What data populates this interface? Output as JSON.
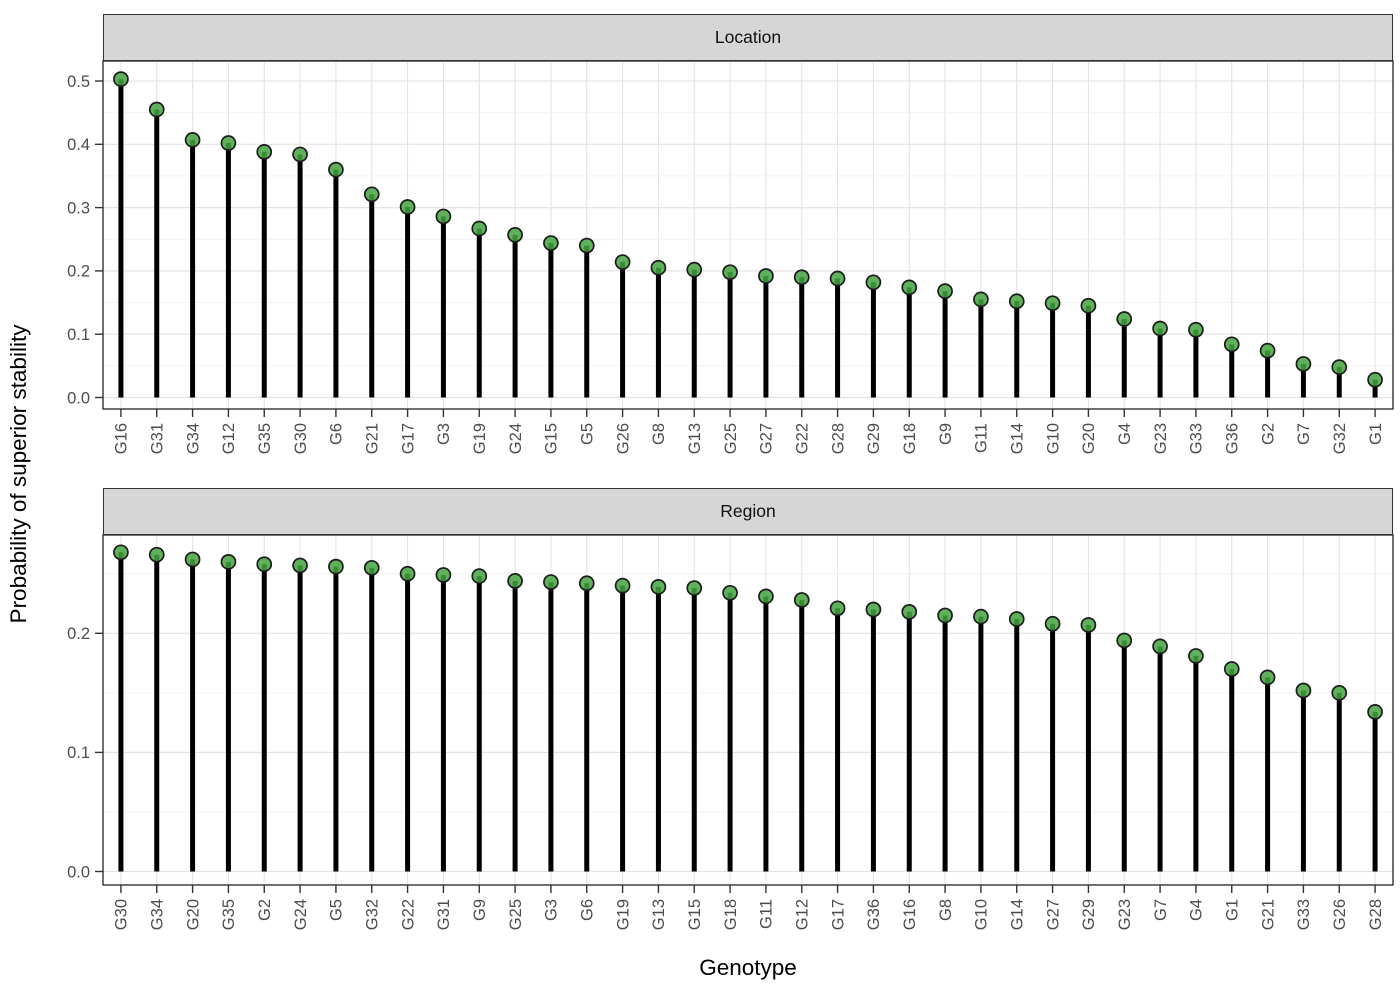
{
  "y_axis_title": "Probability of superior stability",
  "x_axis_title": "Genotype",
  "colors": {
    "point_fill": "#44a340",
    "point_stroke": "#1c1c1c",
    "stem": "#000000",
    "strip_bg": "#d6d6d6",
    "panel_border": "#333333",
    "grid_major": "#e3e3e3",
    "grid_minor": "#f1f1f1",
    "axis_text": "#4d4d4d",
    "tick_mark": "#333333",
    "title_text": "#000000"
  },
  "chart_data": [
    {
      "type": "bar",
      "variant": "lollipop (stem + point)",
      "facet": "Location",
      "categories": [
        "G16",
        "G31",
        "G34",
        "G12",
        "G35",
        "G30",
        "G6",
        "G21",
        "G17",
        "G3",
        "G19",
        "G24",
        "G15",
        "G5",
        "G26",
        "G8",
        "G13",
        "G25",
        "G27",
        "G22",
        "G28",
        "G29",
        "G18",
        "G9",
        "G11",
        "G14",
        "G10",
        "G20",
        "G4",
        "G23",
        "G33",
        "G36",
        "G2",
        "G7",
        "G32",
        "G1"
      ],
      "values": [
        0.503,
        0.455,
        0.407,
        0.402,
        0.388,
        0.384,
        0.36,
        0.321,
        0.301,
        0.286,
        0.267,
        0.257,
        0.244,
        0.24,
        0.214,
        0.205,
        0.202,
        0.198,
        0.192,
        0.19,
        0.188,
        0.182,
        0.174,
        0.168,
        0.155,
        0.152,
        0.149,
        0.145,
        0.124,
        0.109,
        0.107,
        0.084,
        0.074,
        0.053,
        0.048,
        0.028
      ],
      "yticks": [
        "0.0",
        "0.1",
        "0.2",
        "0.3",
        "0.4",
        "0.5"
      ],
      "ylim": [
        -0.018,
        0.529
      ],
      "grid": true,
      "legend": "none"
    },
    {
      "type": "bar",
      "variant": "lollipop (stem + point)",
      "facet": "Region",
      "categories": [
        "G30",
        "G34",
        "G20",
        "G35",
        "G2",
        "G24",
        "G5",
        "G32",
        "G22",
        "G31",
        "G9",
        "G25",
        "G3",
        "G6",
        "G19",
        "G13",
        "G15",
        "G18",
        "G11",
        "G12",
        "G17",
        "G36",
        "G16",
        "G8",
        "G10",
        "G14",
        "G27",
        "G29",
        "G23",
        "G7",
        "G4",
        "G1",
        "G21",
        "G33",
        "G26",
        "G28"
      ],
      "values": [
        0.268,
        0.266,
        0.262,
        0.26,
        0.258,
        0.257,
        0.256,
        0.255,
        0.25,
        0.249,
        0.248,
        0.244,
        0.243,
        0.242,
        0.24,
        0.239,
        0.238,
        0.234,
        0.231,
        0.228,
        0.221,
        0.22,
        0.218,
        0.215,
        0.214,
        0.212,
        0.208,
        0.207,
        0.194,
        0.189,
        0.181,
        0.17,
        0.163,
        0.152,
        0.15,
        0.134
      ],
      "yticks": [
        "0.0",
        "0.1",
        "0.2"
      ],
      "ylim": [
        -0.011,
        0.283
      ],
      "grid": true,
      "legend": "none"
    }
  ]
}
